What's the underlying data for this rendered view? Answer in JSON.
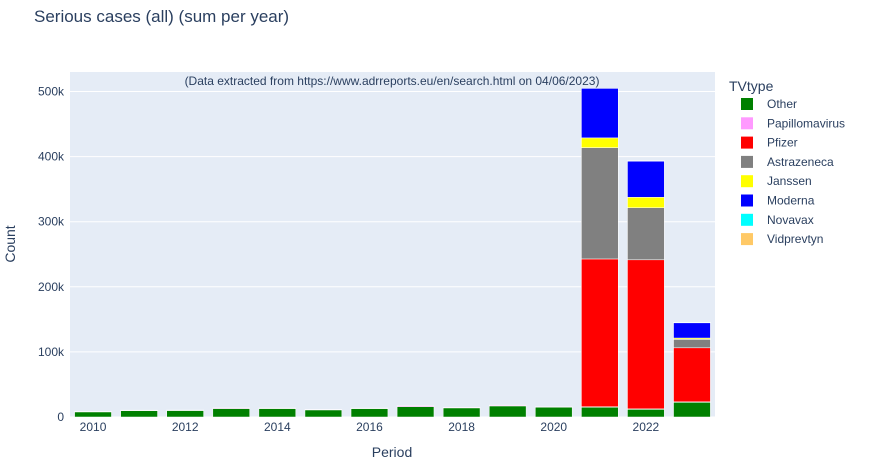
{
  "chart_data": {
    "type": "bar",
    "stacked": true,
    "title": "Serious cases (all) (sum per year)",
    "xlabel": "Period",
    "ylabel": "Count",
    "annotation": "(Data extracted from https://www.adrreports.eu/en/search.html on 04/06/2023)",
    "legend_title": "TVtype",
    "legend_position": "right",
    "grid": true,
    "ylim": [
      0,
      530000
    ],
    "y_ticks": [
      0,
      100000,
      200000,
      300000,
      400000,
      500000
    ],
    "y_tick_labels": [
      "0",
      "100k",
      "200k",
      "300k",
      "400k",
      "500k"
    ],
    "x_ticks": [
      2010,
      2012,
      2014,
      2016,
      2018,
      2020,
      2022
    ],
    "categories": [
      2010,
      2011,
      2012,
      2013,
      2014,
      2015,
      2016,
      2017,
      2018,
      2019,
      2020,
      2021,
      2022,
      2023
    ],
    "series": [
      {
        "name": "Other",
        "color": "#008000",
        "values": [
          8000,
          10000,
          10000,
          13000,
          13000,
          11000,
          13000,
          16000,
          14000,
          17000,
          15000,
          15000,
          12000,
          23000
        ]
      },
      {
        "name": "Papillomavirus",
        "color": "#ff99ff",
        "values": [
          500,
          500,
          700,
          1000,
          800,
          600,
          700,
          1500,
          900,
          1200,
          900,
          800,
          500,
          300
        ]
      },
      {
        "name": "Pfizer",
        "color": "#ff0000",
        "values": [
          0,
          0,
          0,
          0,
          0,
          0,
          0,
          0,
          0,
          0,
          0,
          227000,
          229000,
          83000
        ]
      },
      {
        "name": "Astrazeneca",
        "color": "#808080",
        "values": [
          0,
          0,
          0,
          0,
          0,
          0,
          0,
          0,
          0,
          0,
          0,
          171000,
          80000,
          13000
        ]
      },
      {
        "name": "Janssen",
        "color": "#ffff00",
        "values": [
          0,
          0,
          0,
          0,
          0,
          0,
          0,
          0,
          0,
          0,
          0,
          15000,
          16000,
          2000
        ]
      },
      {
        "name": "Moderna",
        "color": "#0000ff",
        "values": [
          0,
          0,
          0,
          0,
          0,
          0,
          0,
          0,
          0,
          0,
          0,
          76000,
          56000,
          24000
        ]
      },
      {
        "name": "Novavax",
        "color": "#00ffff",
        "values": [
          0,
          0,
          0,
          0,
          0,
          0,
          0,
          0,
          0,
          0,
          0,
          0,
          200,
          100
        ]
      },
      {
        "name": "Vidprevtyn",
        "color": "#ffc966",
        "values": [
          0,
          0,
          0,
          0,
          0,
          0,
          0,
          0,
          0,
          0,
          0,
          0,
          0,
          0
        ]
      }
    ]
  }
}
